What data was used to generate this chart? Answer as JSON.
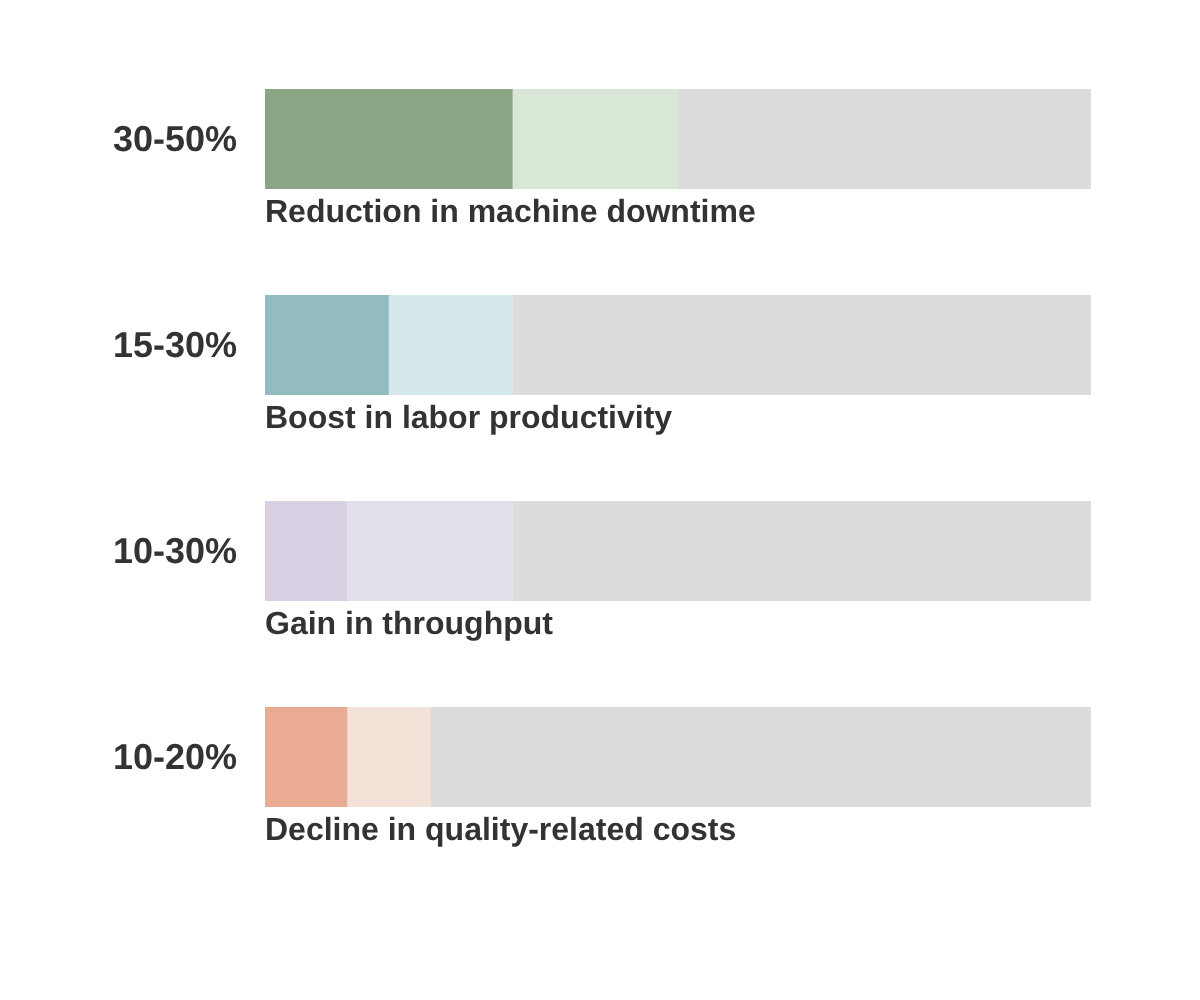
{
  "chart_data": {
    "type": "bar",
    "orientation": "horizontal",
    "stacked": true,
    "tick_labels": false,
    "categories": [
      "Reduction in machine downtime",
      "Boost in labor productivity",
      "Gain in throughput",
      "Decline in quality-related costs"
    ],
    "series": [
      {
        "values": [
          30,
          15,
          10,
          10
        ],
        "colors": [
          "#8aa583",
          "#93bcc1",
          "#d9d0e3",
          "#e9ab92"
        ],
        "value_labels": [
          "30-50%",
          "15-30%",
          "10-30%",
          "10-20%"
        ]
      },
      {
        "values": [
          20,
          15,
          20,
          10
        ],
        "colors": [
          "#d9e7d6",
          "#d4e8ec",
          "#e2dfeb",
          "#f3e2d7"
        ]
      },
      {
        "values": [
          50,
          70,
          70,
          80
        ],
        "colors": [
          "#dcdcdc",
          "#dcdcdc",
          "#dcdcdc",
          "#dcdcdc"
        ]
      }
    ]
  }
}
